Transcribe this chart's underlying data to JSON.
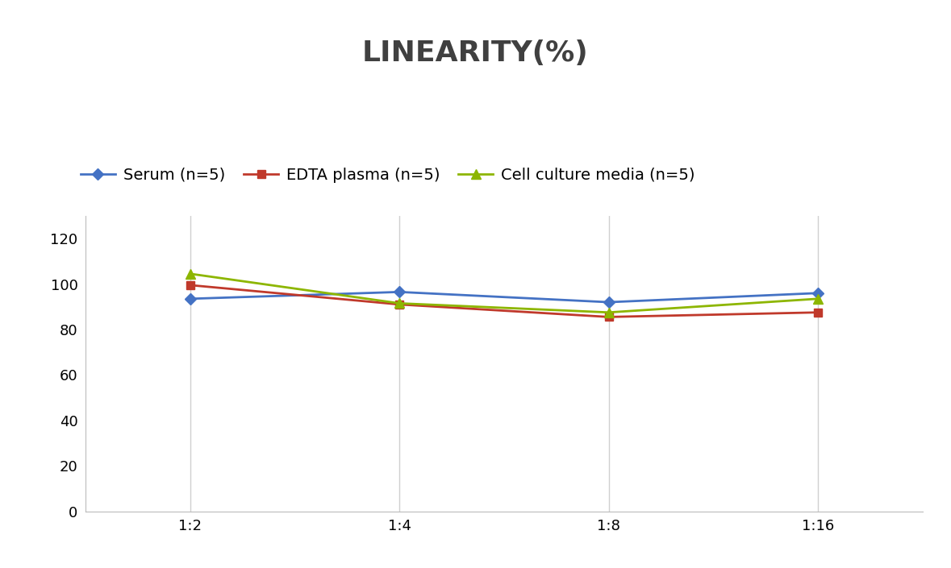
{
  "title": "LINEARITY(%)",
  "title_fontsize": 26,
  "title_fontweight": "bold",
  "title_color": "#404040",
  "x_labels": [
    "1:2",
    "1:4",
    "1:8",
    "1:16"
  ],
  "serum": {
    "label": "Serum (n=5)",
    "values": [
      93.5,
      96.5,
      92.0,
      96.0
    ],
    "color": "#4472C4",
    "marker": "D",
    "markersize": 7,
    "linewidth": 2.0
  },
  "edta": {
    "label": "EDTA plasma (n=5)",
    "values": [
      99.5,
      91.0,
      85.5,
      87.5
    ],
    "color": "#C0392B",
    "marker": "s",
    "markersize": 7,
    "linewidth": 2.0
  },
  "cell": {
    "label": "Cell culture media (n=5)",
    "values": [
      104.5,
      91.5,
      87.5,
      93.5
    ],
    "color": "#8DB600",
    "marker": "^",
    "markersize": 8,
    "linewidth": 2.0
  },
  "ylim": [
    0,
    130
  ],
  "yticks": [
    0,
    20,
    40,
    60,
    80,
    100,
    120
  ],
  "grid_color": "#D0D0D0",
  "background_color": "#FFFFFF",
  "legend_fontsize": 14,
  "tick_fontsize": 13
}
